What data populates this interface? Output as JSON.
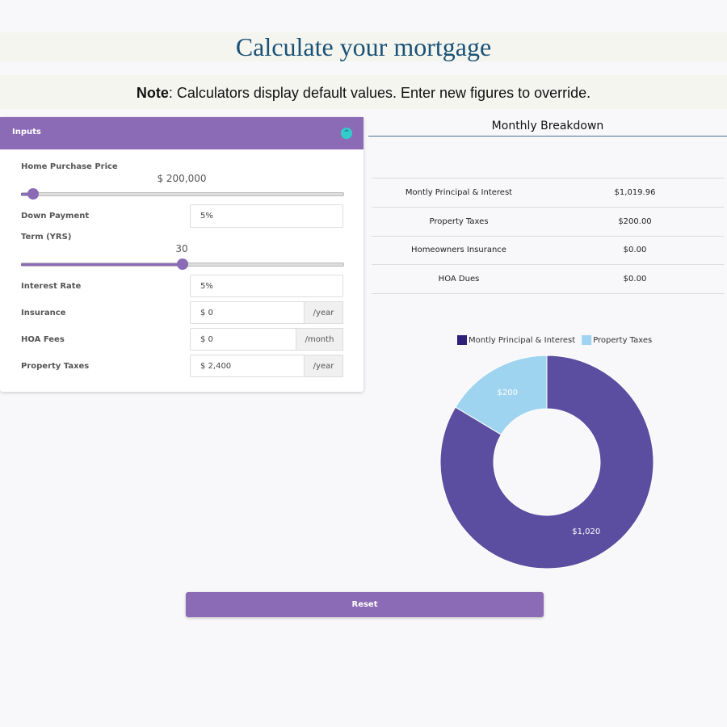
{
  "header": {
    "title": "Calculate your mortgage"
  },
  "note": {
    "bold": "Note",
    "text": ": Calculators display default values. Enter new figures to override."
  },
  "inputs": {
    "title": "Inputs",
    "home_price": {
      "label": "Home Purchase Price",
      "value": "$ 200,000"
    },
    "down_payment": {
      "label": "Down Payment",
      "value": "5%"
    },
    "term": {
      "label": "Term (YRS)",
      "value": "30"
    },
    "interest_rate": {
      "label": "Interest Rate",
      "value": "5%"
    },
    "insurance": {
      "label": "Insurance",
      "value": "$ 0",
      "unit": "/year"
    },
    "hoa_fees": {
      "label": "HOA Fees",
      "value": "$ 0",
      "unit": "/month"
    },
    "property_taxes": {
      "label": "Property Taxes",
      "value": "$ 2,400",
      "unit": "/year"
    }
  },
  "breakdown": {
    "title": "Monthly Breakdown",
    "rows": [
      [
        "Montly Principal & Interest",
        "$1,019.96"
      ],
      [
        "Property Taxes",
        "$200.00"
      ],
      [
        "Homeowners Insurance",
        "$0.00"
      ],
      [
        "HOA Dues",
        "$0.00"
      ]
    ]
  },
  "chart_data": {
    "type": "doughnut",
    "categories": [
      "Montly Principal & Interest",
      "Property Taxes"
    ],
    "values": [
      1020,
      200
    ],
    "value_labels": [
      "$1,020",
      "$200"
    ],
    "colors": [
      "#5b4d9f",
      "#9fd4f0"
    ],
    "legend_colors": [
      "#2e1f7a",
      "#9fd4f0"
    ]
  },
  "reset": "Reset"
}
